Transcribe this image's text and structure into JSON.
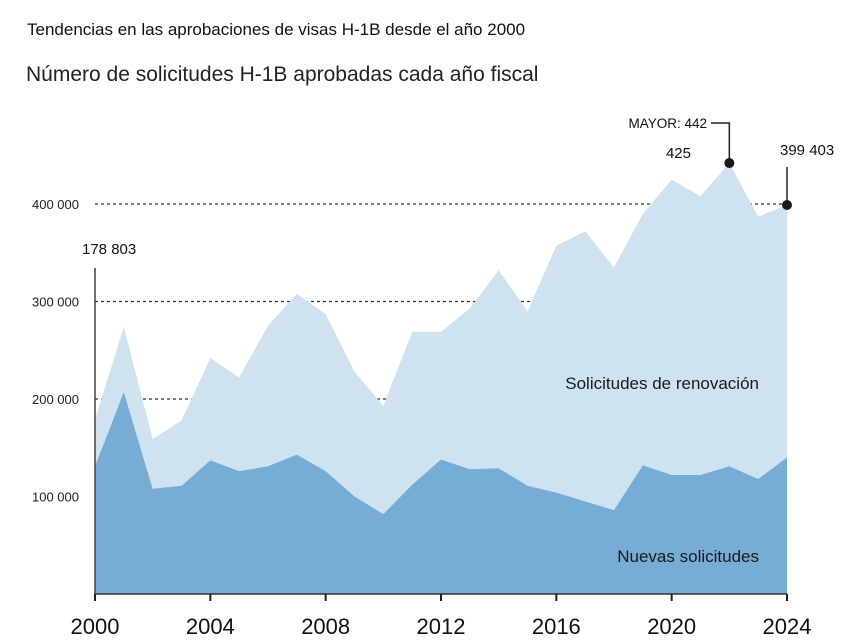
{
  "header": {
    "title": "Tendencias en las aprobaciones de visas H-1B desde el año 2000"
  },
  "chart_data": {
    "type": "area",
    "stacked": true,
    "title": "Número de solicitudes H-1B aprobadas cada año fiscal",
    "xlabel": "",
    "ylabel": "",
    "x": [
      2000,
      2001,
      2002,
      2003,
      2004,
      2005,
      2006,
      2007,
      2008,
      2009,
      2010,
      2011,
      2012,
      2013,
      2014,
      2015,
      2016,
      2017,
      2018,
      2019,
      2020,
      2021,
      2022,
      2023,
      2024
    ],
    "x_ticks": [
      2000,
      2004,
      2008,
      2012,
      2016,
      2020,
      2024
    ],
    "x_tick_labels": [
      "2000",
      "2004",
      "2008",
      "2012",
      "2016",
      "2020",
      "2024"
    ],
    "ylim": [
      0,
      450000
    ],
    "y_ticks": [
      100000,
      200000,
      300000,
      400000
    ],
    "y_tick_labels": [
      "100 000",
      "200 000",
      "300 000",
      "400 000"
    ],
    "gridlines": "dotted horizontal at 200 000, 300 000, 400 000",
    "series": [
      {
        "name": "Nuevas solicitudes",
        "color": "#77acd4",
        "values": [
          131000,
          207000,
          108000,
          111000,
          137000,
          126000,
          131000,
          143000,
          126000,
          100000,
          82000,
          112000,
          138000,
          128000,
          129000,
          111000,
          104000,
          95000,
          86000,
          132000,
          122000,
          122000,
          131000,
          118000,
          140000
        ]
      },
      {
        "name": "Solicitudes de renovación",
        "color": "#cfe2f0",
        "values": [
          48000,
          67000,
          51000,
          67000,
          105000,
          96000,
          144000,
          165000,
          161000,
          128000,
          111000,
          157000,
          131000,
          165000,
          203000,
          179000,
          253000,
          277000,
          249000,
          258000,
          303000,
          286000,
          311000,
          269000,
          259000
        ]
      }
    ],
    "totals": [
      179000,
      274000,
      159000,
      178000,
      242000,
      222000,
      275000,
      308000,
      287000,
      228000,
      193000,
      269000,
      269000,
      293000,
      332000,
      290000,
      357000,
      372000,
      335000,
      390000,
      425000,
      408000,
      442000,
      387000,
      399000
    ],
    "annotations": [
      {
        "label": "178 803",
        "x": 2000
      },
      {
        "label": "MAYOR: 442",
        "x": 2022,
        "marker": true
      },
      {
        "label": "425",
        "x": 2020
      },
      {
        "label": "399 403",
        "x": 2024,
        "marker": true
      }
    ],
    "area_labels": {
      "renewal": "Solicitudes de renovación",
      "new": "Nuevas solicitudes"
    },
    "legend": "inline labels inside areas"
  }
}
